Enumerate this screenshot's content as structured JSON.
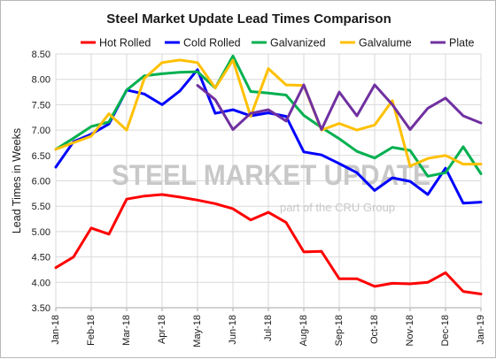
{
  "chart_data": {
    "type": "line",
    "title": "Steel Market Update Lead Times Comparison",
    "ylabel": "Lead Times in Weeks",
    "xlabel": "",
    "ylim": [
      3.5,
      8.5
    ],
    "yticks": [
      "3.50",
      "4.00",
      "4.50",
      "5.00",
      "5.50",
      "6.00",
      "6.50",
      "7.00",
      "7.50",
      "8.00",
      "8.50"
    ],
    "x_ticks": [
      "Jan-18",
      "Feb-18",
      "Mar-18",
      "Apr-18",
      "May-18",
      "Jun-18",
      "Jul-18",
      "Aug-18",
      "Sep-18",
      "Oct-18",
      "Nov-18",
      "Dec-18",
      "Jan-19"
    ],
    "x_count": 25,
    "grid": true,
    "legend_placement": "top",
    "series": [
      {
        "name": "Hot Rolled",
        "color": "#ff0000",
        "values": [
          4.29,
          4.5,
          5.07,
          4.95,
          5.64,
          5.7,
          5.73,
          5.68,
          5.62,
          5.55,
          5.45,
          5.23,
          5.38,
          5.18,
          4.6,
          4.61,
          4.07,
          4.07,
          3.92,
          3.98,
          3.97,
          4.0,
          4.19,
          3.82,
          3.77
        ]
      },
      {
        "name": "Cold Rolled",
        "color": "#0000ff",
        "values": [
          6.27,
          6.77,
          6.92,
          7.12,
          7.79,
          7.71,
          7.5,
          7.77,
          8.19,
          7.33,
          7.4,
          7.28,
          7.34,
          7.27,
          6.57,
          6.51,
          6.34,
          6.16,
          5.81,
          6.06,
          5.99,
          5.73,
          6.25,
          5.56,
          5.58
        ]
      },
      {
        "name": "Galvanized",
        "color": "#00b050",
        "values": [
          6.62,
          6.84,
          7.07,
          7.16,
          7.79,
          8.07,
          8.11,
          8.14,
          8.15,
          7.83,
          8.46,
          7.76,
          7.73,
          7.69,
          7.29,
          7.05,
          6.83,
          6.58,
          6.45,
          6.66,
          6.6,
          6.09,
          6.16,
          6.67,
          6.14
        ]
      },
      {
        "name": "Galvalume",
        "color": "#ffc000",
        "values": [
          6.62,
          6.75,
          6.88,
          7.32,
          7.0,
          8.02,
          8.33,
          8.38,
          8.33,
          7.83,
          8.38,
          7.27,
          8.21,
          7.89,
          7.88,
          7.0,
          7.13,
          7.0,
          7.1,
          7.58,
          6.29,
          6.44,
          6.5,
          6.33,
          6.33
        ]
      },
      {
        "name": "Plate",
        "color": "#7030a0",
        "values": [
          null,
          null,
          null,
          null,
          null,
          null,
          null,
          null,
          7.88,
          7.6,
          7.01,
          7.33,
          7.4,
          7.18,
          7.89,
          7.01,
          7.75,
          7.28,
          7.89,
          7.5,
          7.01,
          7.43,
          7.63,
          7.28,
          7.14
        ]
      }
    ]
  },
  "watermark": {
    "main": "STEEL MARKET UPDATE",
    "sub": "part of the  CRU  Group"
  }
}
